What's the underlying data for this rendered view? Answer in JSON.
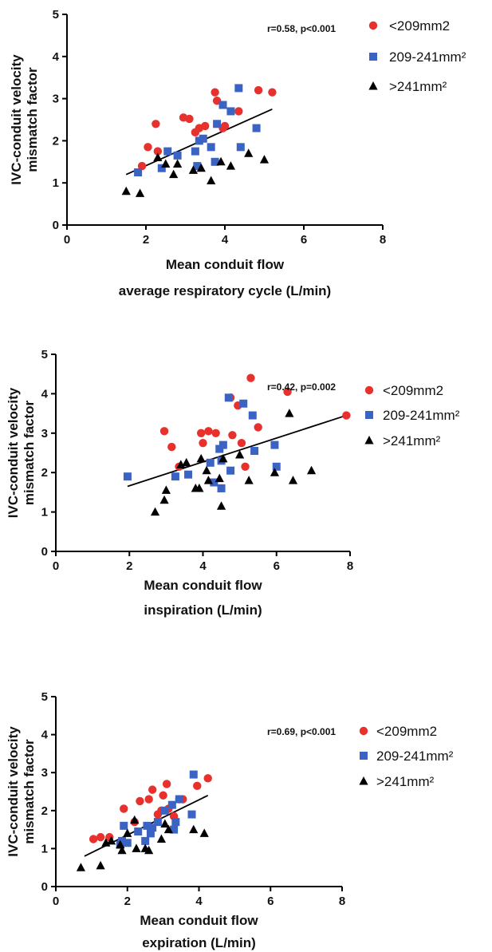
{
  "chart_data": [
    {
      "type": "scatter",
      "ylabel": [
        "IVC-conduit velocity",
        "mismatch factor"
      ],
      "xlabel": [
        "Mean conduit flow",
        "average respiratory cycle (L/min)"
      ],
      "xlim": [
        0,
        8
      ],
      "ylim": [
        0,
        5
      ],
      "xticks": [
        0,
        2,
        4,
        6,
        8
      ],
      "yticks": [
        0,
        1,
        2,
        3,
        4,
        5
      ],
      "stat": "r=0.58, p<0.001",
      "legend_position": "top-right",
      "series": [
        {
          "name": "<209mm2",
          "marker": "circle",
          "color": "#e8302c",
          "points": [
            [
              1.9,
              1.4
            ],
            [
              2.05,
              1.85
            ],
            [
              2.25,
              2.4
            ],
            [
              2.3,
              1.75
            ],
            [
              2.95,
              2.55
            ],
            [
              3.1,
              2.52
            ],
            [
              3.25,
              2.2
            ],
            [
              3.35,
              2.3
            ],
            [
              3.5,
              2.35
            ],
            [
              3.75,
              3.15
            ],
            [
              3.8,
              2.95
            ],
            [
              3.95,
              2.3
            ],
            [
              4.0,
              2.35
            ],
            [
              4.35,
              2.7
            ],
            [
              4.85,
              3.2
            ],
            [
              5.2,
              3.15
            ]
          ]
        },
        {
          "name": "209-241mm²",
          "marker": "square",
          "color": "#3b63c4",
          "points": [
            [
              1.8,
              1.25
            ],
            [
              2.4,
              1.35
            ],
            [
              2.55,
              1.75
            ],
            [
              2.8,
              1.65
            ],
            [
              3.25,
              1.75
            ],
            [
              3.3,
              1.4
            ],
            [
              3.35,
              2.0
            ],
            [
              3.45,
              2.05
            ],
            [
              3.65,
              1.85
            ],
            [
              3.75,
              1.5
            ],
            [
              3.8,
              2.4
            ],
            [
              3.95,
              2.85
            ],
            [
              4.15,
              2.7
            ],
            [
              4.35,
              3.25
            ],
            [
              4.4,
              1.85
            ],
            [
              4.8,
              2.3
            ]
          ]
        },
        {
          "name": ">241mm²",
          "marker": "triangle",
          "color": "#000000",
          "points": [
            [
              1.5,
              0.8
            ],
            [
              1.85,
              0.75
            ],
            [
              2.3,
              1.6
            ],
            [
              2.5,
              1.45
            ],
            [
              2.7,
              1.2
            ],
            [
              2.8,
              1.45
            ],
            [
              3.2,
              1.3
            ],
            [
              3.4,
              1.35
            ],
            [
              3.65,
              1.05
            ],
            [
              3.9,
              1.5
            ],
            [
              4.15,
              1.4
            ],
            [
              4.6,
              1.7
            ],
            [
              5.0,
              1.55
            ]
          ]
        }
      ],
      "fit_line": {
        "x": [
          1.5,
          5.2
        ],
        "y": [
          1.2,
          2.75
        ]
      }
    },
    {
      "type": "scatter",
      "ylabel": [
        "IVC-conduit velocity",
        "mismatch factor"
      ],
      "xlabel": [
        "Mean conduit flow",
        "inspiration (L/min)"
      ],
      "xlim": [
        0,
        8
      ],
      "ylim": [
        0,
        5
      ],
      "xticks": [
        0,
        2,
        4,
        6,
        8
      ],
      "yticks": [
        0,
        1,
        2,
        3,
        4,
        5
      ],
      "stat": "r=0.42, p=0.002",
      "legend_position": "top-right",
      "series": [
        {
          "name": "<209mm2",
          "marker": "circle",
          "color": "#e8302c",
          "points": [
            [
              2.95,
              3.05
            ],
            [
              3.15,
              2.65
            ],
            [
              3.35,
              2.15
            ],
            [
              3.95,
              3.0
            ],
            [
              4.0,
              2.75
            ],
            [
              4.15,
              3.05
            ],
            [
              4.35,
              3.0
            ],
            [
              4.75,
              3.9
            ],
            [
              4.8,
              2.95
            ],
            [
              4.95,
              3.7
            ],
            [
              5.05,
              2.75
            ],
            [
              5.15,
              2.15
            ],
            [
              5.3,
              4.4
            ],
            [
              5.5,
              3.15
            ],
            [
              6.3,
              4.05
            ],
            [
              7.9,
              3.45
            ]
          ]
        },
        {
          "name": "209-241mm²",
          "marker": "square",
          "color": "#3b63c4",
          "points": [
            [
              1.95,
              1.9
            ],
            [
              3.25,
              1.9
            ],
            [
              3.6,
              1.95
            ],
            [
              4.2,
              2.25
            ],
            [
              4.3,
              1.75
            ],
            [
              4.45,
              2.6
            ],
            [
              4.5,
              2.3
            ],
            [
              4.5,
              1.6
            ],
            [
              4.55,
              2.7
            ],
            [
              4.7,
              3.9
            ],
            [
              4.75,
              2.05
            ],
            [
              5.1,
              3.75
            ],
            [
              5.35,
              3.45
            ],
            [
              5.4,
              2.55
            ],
            [
              5.95,
              2.7
            ],
            [
              6.0,
              2.15
            ]
          ]
        },
        {
          "name": ">241mm²",
          "marker": "triangle",
          "color": "#000000",
          "points": [
            [
              2.7,
              1.0
            ],
            [
              2.95,
              1.3
            ],
            [
              3.0,
              1.55
            ],
            [
              3.4,
              2.2
            ],
            [
              3.55,
              2.25
            ],
            [
              3.8,
              1.6
            ],
            [
              3.9,
              1.6
            ],
            [
              3.95,
              2.35
            ],
            [
              4.1,
              2.05
            ],
            [
              4.15,
              1.8
            ],
            [
              4.45,
              1.85
            ],
            [
              4.5,
              1.15
            ],
            [
              4.55,
              2.35
            ],
            [
              5.0,
              2.45
            ],
            [
              5.25,
              1.8
            ],
            [
              5.95,
              2.0
            ],
            [
              6.35,
              3.5
            ],
            [
              6.45,
              1.8
            ],
            [
              6.95,
              2.05
            ]
          ]
        }
      ],
      "fit_line": {
        "x": [
          1.95,
          7.9
        ],
        "y": [
          1.65,
          3.45
        ]
      }
    },
    {
      "type": "scatter",
      "ylabel": [
        "IVC-conduit velocity",
        "mismatch factor"
      ],
      "xlabel": [
        "Mean conduit flow",
        "expiration (L/min)"
      ],
      "xlim": [
        0,
        8
      ],
      "ylim": [
        0,
        5
      ],
      "xticks": [
        0,
        2,
        4,
        6,
        8
      ],
      "yticks": [
        0,
        1,
        2,
        3,
        4,
        5
      ],
      "stat": "r=0.69, p<0.001",
      "legend_position": "top-right",
      "series": [
        {
          "name": "<209mm2",
          "marker": "circle",
          "color": "#e8302c",
          "points": [
            [
              1.05,
              1.25
            ],
            [
              1.25,
              1.3
            ],
            [
              1.5,
              1.3
            ],
            [
              1.9,
              2.05
            ],
            [
              2.2,
              1.7
            ],
            [
              2.35,
              2.25
            ],
            [
              2.6,
              2.3
            ],
            [
              2.7,
              2.55
            ],
            [
              2.85,
              1.9
            ],
            [
              2.95,
              2.0
            ],
            [
              3.0,
              2.4
            ],
            [
              3.1,
              2.7
            ],
            [
              3.15,
              2.05
            ],
            [
              3.3,
              1.85
            ],
            [
              3.45,
              2.3
            ],
            [
              3.55,
              2.3
            ],
            [
              3.95,
              2.65
            ],
            [
              4.25,
              2.85
            ]
          ]
        },
        {
          "name": "209-241mm²",
          "marker": "square",
          "color": "#3b63c4",
          "points": [
            [
              1.8,
              1.1
            ],
            [
              1.85,
              1.2
            ],
            [
              1.9,
              1.6
            ],
            [
              2.0,
              1.15
            ],
            [
              2.3,
              1.45
            ],
            [
              2.5,
              1.2
            ],
            [
              2.55,
              1.6
            ],
            [
              2.65,
              1.4
            ],
            [
              2.7,
              1.55
            ],
            [
              2.85,
              1.7
            ],
            [
              3.05,
              2.0
            ],
            [
              3.25,
              2.15
            ],
            [
              3.3,
              1.5
            ],
            [
              3.35,
              1.7
            ],
            [
              3.45,
              2.3
            ],
            [
              3.8,
              1.9
            ],
            [
              3.85,
              2.95
            ]
          ]
        },
        {
          "name": ">241mm²",
          "marker": "triangle",
          "color": "#000000",
          "points": [
            [
              0.7,
              0.5
            ],
            [
              1.25,
              0.55
            ],
            [
              1.4,
              1.15
            ],
            [
              1.55,
              1.2
            ],
            [
              1.8,
              1.1
            ],
            [
              1.85,
              0.95
            ],
            [
              2.0,
              1.4
            ],
            [
              2.2,
              1.75
            ],
            [
              2.25,
              1.0
            ],
            [
              2.5,
              1.0
            ],
            [
              2.6,
              0.95
            ],
            [
              2.95,
              1.25
            ],
            [
              3.05,
              1.65
            ],
            [
              3.15,
              1.5
            ],
            [
              3.85,
              1.5
            ],
            [
              4.15,
              1.4
            ]
          ]
        }
      ],
      "fit_line": {
        "x": [
          0.8,
          4.25
        ],
        "y": [
          0.8,
          2.4
        ]
      }
    }
  ]
}
